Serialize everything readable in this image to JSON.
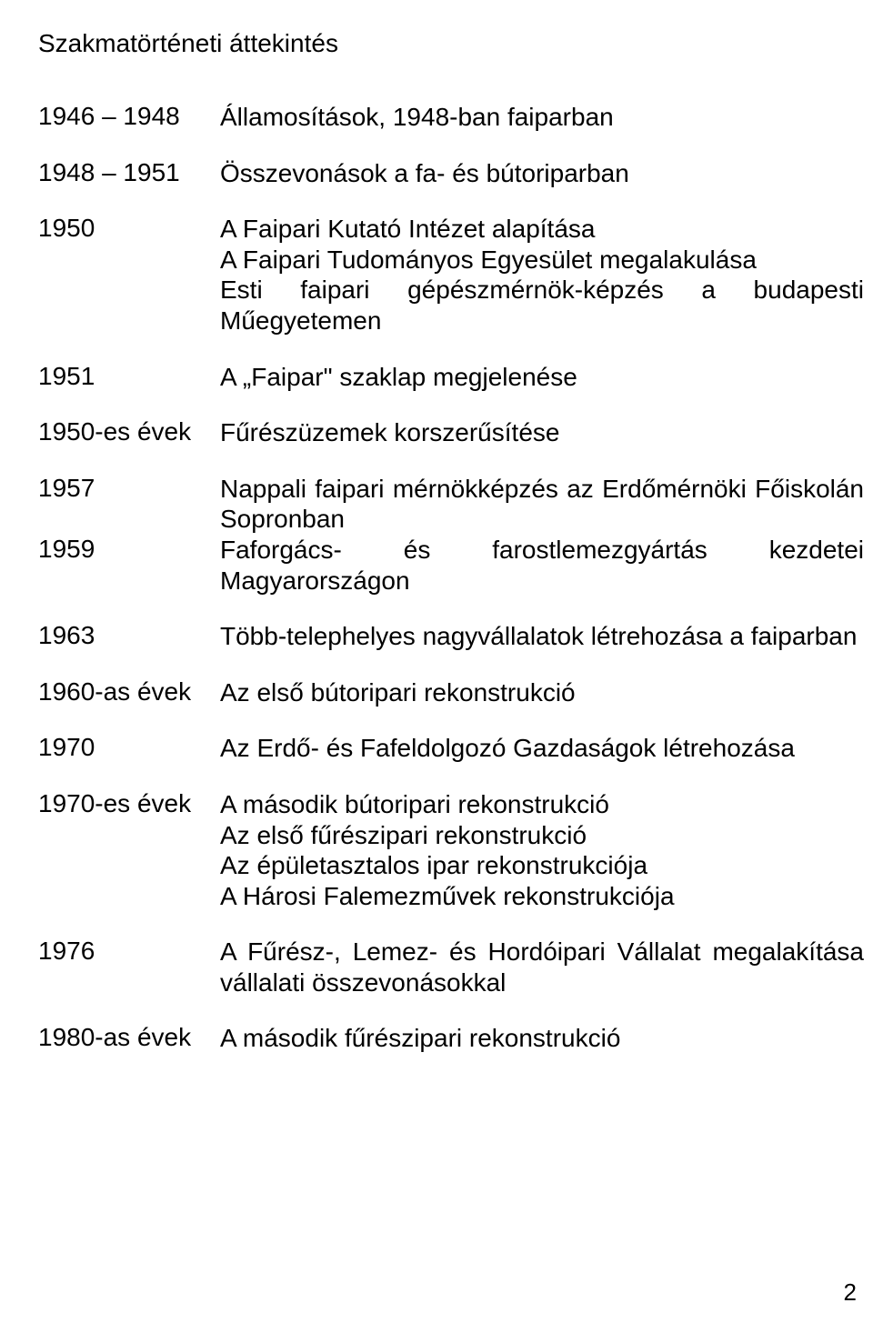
{
  "title": "Szakmatörténeti áttekintés",
  "colors": {
    "background": "#ffffff",
    "text": "#000000"
  },
  "typography": {
    "font_family": "Arial, Helvetica, sans-serif",
    "font_size_pt": 21,
    "line_height": 1.2
  },
  "timeline": [
    {
      "year": "1946 – 1948",
      "desc": "Államosítások, 1948-ban faiparban",
      "justify": false
    },
    {
      "year": "1948 – 1951",
      "desc": "Összevonások a fa- és bútoriparban",
      "justify": false
    },
    {
      "year": "1950",
      "desc": "A Faipari Kutató Intézet alapítása\nA Faipari Tudományos Egyesület megalakulása\nEsti faipari gépészmérnök-képzés a budapesti Műegyetemen",
      "justify": true
    },
    {
      "year": "1951",
      "desc": "A „Faipar\" szaklap megjelenése",
      "justify": false
    },
    {
      "year": "1950-es évek",
      "desc": "Fűrészüzemek korszerűsítése",
      "justify": false
    },
    {
      "year": "1957",
      "desc": "Nappali faipari mérnökképzés az Erdőmérnöki Főiskolán Sopronban",
      "justify": true,
      "compact": true
    },
    {
      "year": "1959",
      "desc": "Faforgács- és farostlemezgyártás kezdetei Magyarországon",
      "justify": true
    },
    {
      "year": "1963",
      "desc": "Több-telephelyes nagyvállalatok létrehozása a faiparban",
      "justify": true
    },
    {
      "year": "1960-as évek",
      "desc": "Az első bútoripari rekonstrukció",
      "justify": false
    },
    {
      "year": "1970",
      "desc": "Az Erdő- és Fafeldolgozó Gazdaságok létrehozása",
      "justify": true
    },
    {
      "year": "1970-es évek",
      "desc": "A második bútoripari rekonstrukció\nAz első fűrészipari rekonstrukció\nAz épületasztalos ipar rekonstrukciója\nA Hárosi Falemezművek rekonstrukciója",
      "justify": false
    },
    {
      "year": "1976",
      "desc": "A Fűrész-, Lemez- és Hordóipari Vállalat megalakítása vállalati összevonásokkal",
      "justify": true
    },
    {
      "year": "1980-as évek",
      "desc": "A második  fűrészipari rekonstrukció",
      "justify": false
    }
  ],
  "page_number": "2"
}
